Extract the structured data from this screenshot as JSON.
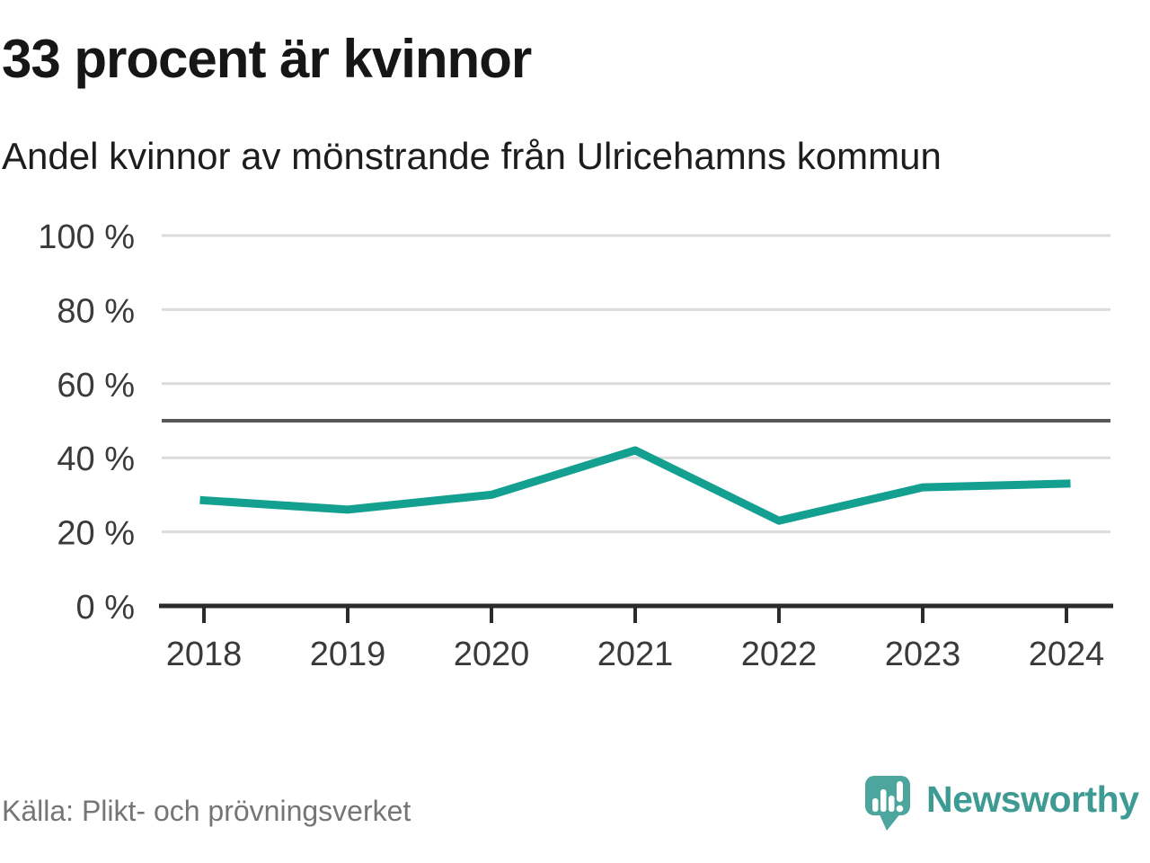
{
  "header": {
    "title": "33 procent är kvinnor",
    "subtitle": "Andel kvinnor av mönstrande från Ulricehamns kommun"
  },
  "chart_data": {
    "type": "line",
    "title": "33 procent är kvinnor",
    "subtitle": "Andel kvinnor av mönstrande från Ulricehamns kommun",
    "categories": [
      "2018",
      "2019",
      "2020",
      "2021",
      "2022",
      "2023",
      "2024"
    ],
    "series": [
      {
        "name": "Andel kvinnor av mönstrande",
        "values": [
          28.5,
          26,
          30,
          42,
          23,
          32,
          33
        ]
      }
    ],
    "xlabel": "",
    "ylabel": "",
    "ylim": [
      0,
      100
    ],
    "yticks": [
      0,
      20,
      40,
      60,
      80,
      100
    ],
    "ytick_labels": [
      "0 %",
      "20 %",
      "40 %",
      "60 %",
      "80 %",
      "100 %"
    ],
    "reference_line": 50,
    "grid": true,
    "legend": "none",
    "line_color": "#14a091"
  },
  "footer": {
    "source": "Källa: Plikt- och prövningsverket",
    "brand": "Newsworthy"
  },
  "colors": {
    "accent_teal": "#14a091",
    "logo_pin_teal": "#4ca69e",
    "wordmark_teal": "#3e9b93",
    "grid": "#dbdbdb",
    "reference_line": "#56585a",
    "axis": "#2b2b2b",
    "tick_text": "#3a3a3a",
    "title_text": "#161616",
    "source_text": "#757575"
  }
}
